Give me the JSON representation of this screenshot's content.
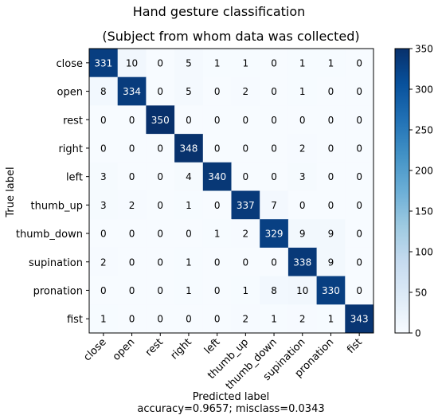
{
  "chart_data": {
    "type": "heatmap",
    "title": "Hand gesture classification",
    "subtitle": "(Subject from whom data was collected)",
    "xlabel": "Predicted label",
    "xlabel_note": "accuracy=0.9657; misclass=0.0343",
    "ylabel": "True label",
    "row_labels": [
      "close",
      "open",
      "rest",
      "right",
      "left",
      "thumb_up",
      "thumb_down",
      "supination",
      "pronation",
      "fist"
    ],
    "col_labels": [
      "close",
      "open",
      "rest",
      "right",
      "left",
      "thumb_up",
      "thumb_down",
      "supination",
      "pronation",
      "fist"
    ],
    "matrix": [
      [
        331,
        10,
        0,
        5,
        1,
        1,
        0,
        1,
        1,
        0
      ],
      [
        8,
        334,
        0,
        5,
        0,
        2,
        0,
        1,
        0,
        0
      ],
      [
        0,
        0,
        350,
        0,
        0,
        0,
        0,
        0,
        0,
        0
      ],
      [
        0,
        0,
        0,
        348,
        0,
        0,
        0,
        2,
        0,
        0
      ],
      [
        3,
        0,
        0,
        4,
        340,
        0,
        0,
        3,
        0,
        0
      ],
      [
        3,
        2,
        0,
        1,
        0,
        337,
        7,
        0,
        0,
        0
      ],
      [
        0,
        0,
        0,
        0,
        1,
        2,
        329,
        9,
        9,
        0
      ],
      [
        2,
        0,
        0,
        1,
        0,
        0,
        0,
        338,
        9,
        0
      ],
      [
        0,
        0,
        0,
        1,
        0,
        1,
        8,
        10,
        330,
        0
      ],
      [
        1,
        0,
        0,
        0,
        0,
        2,
        1,
        2,
        1,
        343
      ]
    ],
    "colorbar": {
      "min": 0,
      "max": 350,
      "ticks": [
        0,
        50,
        100,
        150,
        200,
        250,
        300,
        350
      ],
      "colormap": "Blues",
      "low_color": "#f7fbff",
      "high_color": "#08306b"
    },
    "grid": false
  }
}
